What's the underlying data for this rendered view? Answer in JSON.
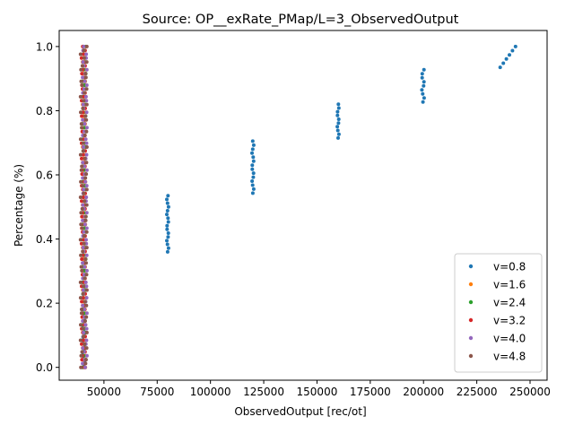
{
  "chart_data": {
    "type": "scatter",
    "title": "Source: OP__exRate_PMap/L=3_ObservedOutput",
    "xlabel": "ObservedOutput [rec/ot]",
    "ylabel": "Percentage (%)",
    "xlim": [
      29000,
      258000
    ],
    "ylim": [
      -0.04,
      1.05
    ],
    "xticks": [
      50000,
      75000,
      100000,
      125000,
      150000,
      175000,
      200000,
      225000,
      250000
    ],
    "xtick_labels": [
      "50000",
      "75000",
      "100000",
      "125000",
      "150000",
      "175000",
      "200000",
      "225000",
      "250000"
    ],
    "yticks": [
      0.0,
      0.2,
      0.4,
      0.6,
      0.8,
      1.0
    ],
    "ytick_labels": [
      "0.0",
      "0.2",
      "0.4",
      "0.6",
      "0.8",
      "1.0"
    ],
    "grid": false,
    "legend_position": "lower-right",
    "series": [
      {
        "name": "v=0.8",
        "color": "#1f77b4",
        "clusters": [
          {
            "x_start": 40000,
            "x_end": 41000,
            "y_min": 0.01,
            "y_max": 0.35
          },
          {
            "x_start": 79500,
            "x_end": 80300,
            "y_min": 0.36,
            "y_max": 0.535
          },
          {
            "x_start": 119500,
            "x_end": 120300,
            "y_min": 0.543,
            "y_max": 0.705
          },
          {
            "x_start": 159500,
            "x_end": 160300,
            "y_min": 0.715,
            "y_max": 0.82
          },
          {
            "x_start": 199200,
            "x_end": 200300,
            "y_min": 0.827,
            "y_max": 0.928
          },
          {
            "x_start": 236000,
            "x_end": 243200,
            "y_min": 0.935,
            "y_max": 1.0
          }
        ]
      },
      {
        "name": "v=1.6",
        "color": "#ff7f0e",
        "clusters": [
          {
            "x_start": 40000,
            "x_end": 41500,
            "y_min": 0.0,
            "y_max": 1.0
          }
        ]
      },
      {
        "name": "v=2.4",
        "color": "#2ca02c",
        "clusters": [
          {
            "x_start": 40000,
            "x_end": 41500,
            "y_min": 0.0,
            "y_max": 1.0
          }
        ]
      },
      {
        "name": "v=3.2",
        "color": "#d62728",
        "clusters": [
          {
            "x_start": 39500,
            "x_end": 41200,
            "y_min": 0.0,
            "y_max": 1.0
          }
        ]
      },
      {
        "name": "v=4.0",
        "color": "#9467bd",
        "clusters": [
          {
            "x_start": 40000,
            "x_end": 42000,
            "y_min": 0.0,
            "y_max": 1.0
          }
        ]
      },
      {
        "name": "v=4.8",
        "color": "#8c564b",
        "clusters": [
          {
            "x_start": 39000,
            "x_end": 42000,
            "y_min": 0.0,
            "y_max": 1.0
          }
        ]
      }
    ]
  }
}
